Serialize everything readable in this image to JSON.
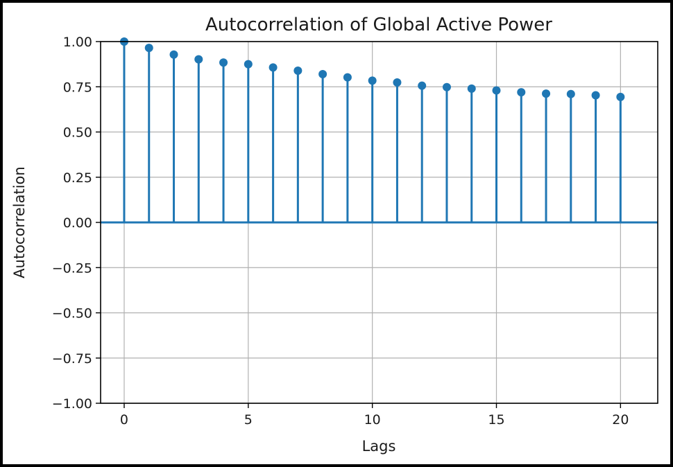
{
  "chart_data": {
    "type": "stem",
    "title": "Autocorrelation of Global Active Power",
    "xlabel": "Lags",
    "ylabel": "Autocorrelation",
    "x": [
      0,
      1,
      2,
      3,
      4,
      5,
      6,
      7,
      8,
      9,
      10,
      11,
      12,
      13,
      14,
      15,
      16,
      17,
      18,
      19,
      20
    ],
    "values": [
      1.0,
      0.965,
      0.928,
      0.902,
      0.884,
      0.875,
      0.857,
      0.839,
      0.82,
      0.802,
      0.784,
      0.774,
      0.756,
      0.748,
      0.74,
      0.73,
      0.72,
      0.712,
      0.71,
      0.703,
      0.694
    ],
    "xlim": [
      -0.95,
      21.5
    ],
    "ylim": [
      -1.0,
      1.0
    ],
    "xticks": [
      0,
      5,
      10,
      15,
      20
    ],
    "xtick_labels": [
      "0",
      "5",
      "10",
      "15",
      "20"
    ],
    "yticks": [
      -1.0,
      -0.75,
      -0.5,
      -0.25,
      0.0,
      0.25,
      0.5,
      0.75,
      1.0
    ],
    "ytick_labels": [
      "−1.00",
      "−0.75",
      "−0.50",
      "−0.25",
      "0.00",
      "0.25",
      "0.50",
      "0.75",
      "1.00"
    ],
    "grid": true,
    "colors": {
      "series": "#1f77b4",
      "grid": "#b0b0b0"
    }
  }
}
